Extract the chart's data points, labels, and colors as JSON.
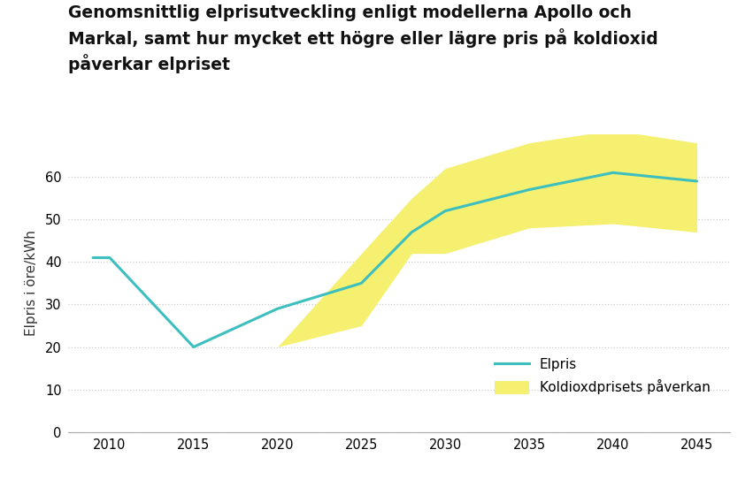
{
  "title_line1": "Genomsnittlig elprisutveckling enligt modellerna Apollo och",
  "title_line2": "Markal, samt hur mycket ett högre eller lägre pris på koldioxid",
  "title_line3": "påverkar elpriset",
  "ylabel": "Elpris i öre/kWh",
  "background_color": "#ffffff",
  "line_color": "#3dbfbf",
  "band_color": "#f5f070",
  "years": [
    2009,
    2010,
    2015,
    2020,
    2025,
    2028,
    2030,
    2035,
    2040,
    2045
  ],
  "elpris": [
    41,
    41,
    20,
    29,
    35,
    47,
    52,
    57,
    61,
    59
  ],
  "band_lower": [
    41,
    41,
    20,
    20,
    25,
    42,
    42,
    48,
    49,
    47
  ],
  "band_upper": [
    41,
    41,
    20,
    20,
    42,
    55,
    62,
    68,
    71,
    68
  ],
  "ylim": [
    0,
    70
  ],
  "yticks": [
    0,
    10,
    20,
    30,
    40,
    50,
    60
  ],
  "xlim_left": 2007.5,
  "xlim_right": 2047,
  "xticks": [
    2010,
    2015,
    2020,
    2025,
    2030,
    2035,
    2040,
    2045
  ],
  "grid_color": "#cccccc",
  "legend_elpris": "Elpris",
  "legend_band": "Koldioxdprisets påverkan",
  "title_fontsize": 13.5,
  "axis_fontsize": 11,
  "tick_fontsize": 10.5
}
